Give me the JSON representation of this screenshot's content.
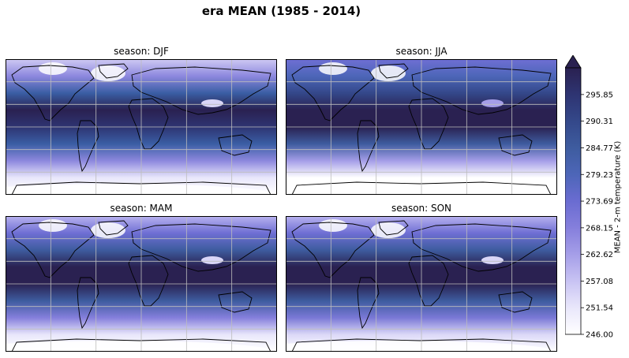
{
  "figure": {
    "title": "era MEAN (1985 - 2014)"
  },
  "panels": [
    {
      "title": "season: DJF",
      "season": "DJF"
    },
    {
      "title": "season: JJA",
      "season": "JJA"
    },
    {
      "title": "season: MAM",
      "season": "MAM"
    },
    {
      "title": "season: SON",
      "season": "SON"
    }
  ],
  "colorbar": {
    "label": "MEAN - 2-m temperature (K)",
    "ticks": [
      "246.00",
      "251.54",
      "257.08",
      "262.62",
      "268.15",
      "273.69",
      "279.23",
      "284.77",
      "290.31",
      "295.85"
    ],
    "min": 246.0,
    "max": 301.4,
    "extend": "max",
    "colormap": [
      "#ffffff",
      "#e9e7fb",
      "#c8c3f3",
      "#a59ee8",
      "#857fdc",
      "#6a6cd1",
      "#4d66b8",
      "#3e5c9f",
      "#34488a",
      "#2e3472",
      "#2a2151"
    ]
  }
}
